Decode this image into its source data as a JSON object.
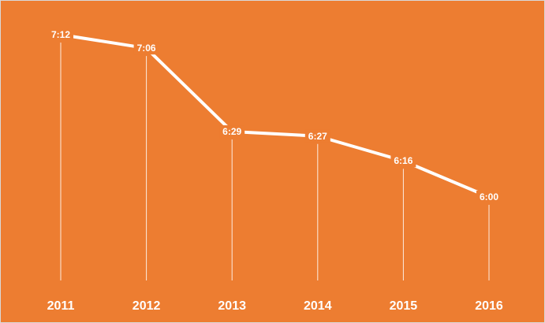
{
  "chart_data": {
    "type": "line",
    "title": "",
    "xlabel": "",
    "ylabel": "",
    "categories": [
      "2011",
      "2012",
      "2013",
      "2014",
      "2015",
      "2016"
    ],
    "values": [
      432,
      426,
      389,
      387,
      376,
      360
    ],
    "labels": [
      "7:12",
      "7:06",
      "6:29",
      "6:27",
      "6:16",
      "6:00"
    ],
    "ylim": [
      0,
      450
    ],
    "grid": false,
    "legend": "none",
    "background_color": "#ED7D31",
    "line_color": "#FFFFFF"
  }
}
